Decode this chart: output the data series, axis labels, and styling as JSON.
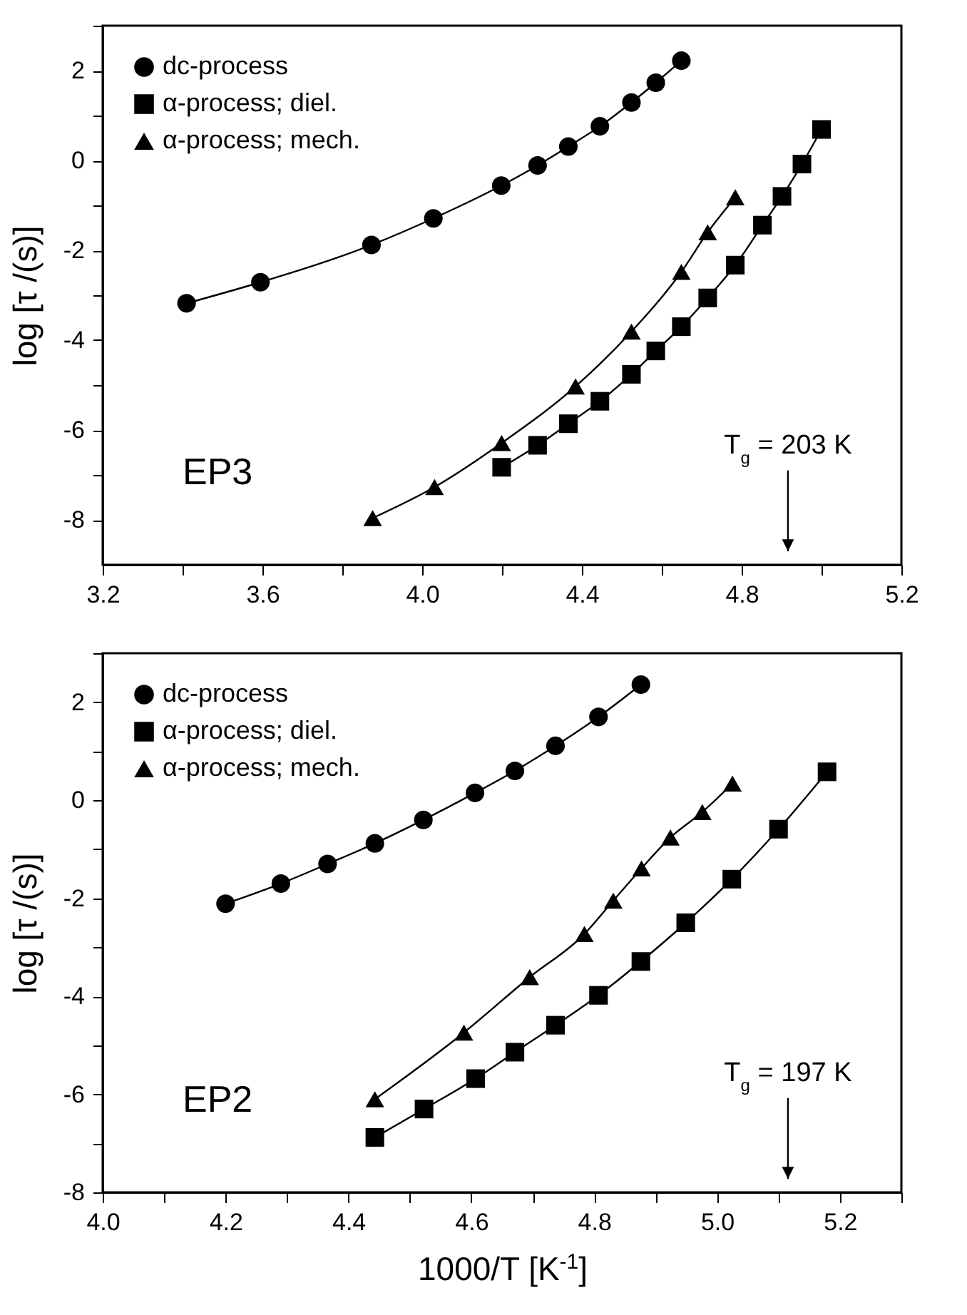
{
  "chart_data": [
    {
      "type": "line",
      "ylabel": "log [τ /(s)]",
      "xlim": [
        3.2,
        5.2
      ],
      "ylim": [
        -9,
        3
      ],
      "xticks": [
        3.2,
        {
          "value": 3.4,
          "label": null
        },
        3.6,
        {
          "value": 3.8,
          "label": null
        },
        {
          "value": 4.0,
          "label": "4.0"
        },
        {
          "value": 4.2,
          "label": null
        },
        4.4,
        {
          "value": 4.6,
          "label": null
        },
        4.8,
        {
          "value": 5.0,
          "label": null
        },
        5.2
      ],
      "yticks": [
        -8,
        {
          "value": -7,
          "label": null
        },
        -6,
        {
          "value": -5,
          "label": null
        },
        -4,
        {
          "value": -3,
          "label": null
        },
        -2,
        {
          "value": -1,
          "label": null
        },
        0,
        {
          "value": 1,
          "label": null
        },
        2,
        {
          "value": 3,
          "label": null
        }
      ],
      "grid": false,
      "legend": "top left",
      "line_style": "solid",
      "series": [
        {
          "name": "dc-process",
          "color": "#000000",
          "marker": "circle",
          "x": [
            3.41,
            3.595,
            3.873,
            4.028,
            4.198,
            4.289,
            4.366,
            4.445,
            4.524,
            4.585,
            4.649
          ],
          "values": [
            -3.18,
            -2.71,
            -1.88,
            -1.29,
            -0.56,
            -0.11,
            0.31,
            0.76,
            1.29,
            1.73,
            2.22
          ]
        },
        {
          "name": "α-process; diel.",
          "color": "#000000",
          "marker": "square",
          "x": [
            4.199,
            4.289,
            4.366,
            4.445,
            4.524,
            4.585,
            4.649,
            4.715,
            4.784,
            4.852,
            4.901,
            4.951,
            5.0
          ],
          "values": [
            -6.83,
            -6.34,
            -5.86,
            -5.36,
            -4.76,
            -4.24,
            -3.7,
            -3.06,
            -2.33,
            -1.44,
            -0.8,
            -0.08,
            0.69
          ]
        },
        {
          "name": "α-process; mech.",
          "color": "#000000",
          "marker": "triangle",
          "x": [
            3.876,
            4.031,
            4.199,
            4.384,
            4.524,
            4.649,
            4.715,
            4.784
          ],
          "values": [
            -7.96,
            -7.27,
            -6.29,
            -5.03,
            -3.81,
            -2.48,
            -1.6,
            -0.82
          ]
        }
      ],
      "annotations": [
        "EP3",
        "T$_{g}$ = 203 K"
      ]
    },
    {
      "type": "line",
      "xlabel": "1000/T [K$^{-1}$]",
      "ylabel": "log [τ /(s)]",
      "xlim": [
        4.0,
        5.3
      ],
      "ylim": [
        -8,
        3
      ],
      "xticks": [
        {
          "value": 4.0,
          "label": "4.0"
        },
        {
          "value": 4.1,
          "label": null
        },
        4.2,
        {
          "value": 4.3,
          "label": null
        },
        4.4,
        {
          "value": 4.5,
          "label": null
        },
        4.6,
        {
          "value": 4.7,
          "label": null
        },
        4.8,
        {
          "value": 4.9,
          "label": null
        },
        {
          "value": 5.0,
          "label": "5.0"
        },
        {
          "value": 5.1,
          "label": null
        },
        5.2,
        {
          "value": 5.3,
          "label": null
        }
      ],
      "yticks": [
        -8,
        {
          "value": -7,
          "label": null
        },
        -6,
        {
          "value": -5,
          "label": null
        },
        -4,
        {
          "value": -3,
          "label": null
        },
        -2,
        {
          "value": -1,
          "label": null
        },
        0,
        {
          "value": 1,
          "label": null
        },
        2,
        {
          "value": 3,
          "label": null
        }
      ],
      "grid": false,
      "legend": "top left",
      "line_style": "solid",
      "series": [
        {
          "name": "dc-process",
          "color": "#000000",
          "marker": "circle",
          "x": [
            4.2,
            4.29,
            4.366,
            4.443,
            4.522,
            4.606,
            4.671,
            4.737,
            4.807,
            4.876
          ],
          "values": [
            -2.11,
            -1.7,
            -1.3,
            -0.88,
            -0.4,
            0.15,
            0.6,
            1.11,
            1.7,
            2.36
          ]
        },
        {
          "name": "α-process; diel.",
          "color": "#000000",
          "marker": "square",
          "x": [
            4.443,
            4.523,
            4.607,
            4.671,
            4.737,
            4.807,
            4.876,
            4.949,
            5.024,
            5.1,
            5.179
          ],
          "values": [
            -6.88,
            -6.3,
            -5.68,
            -5.14,
            -4.59,
            -3.98,
            -3.29,
            -2.5,
            -1.61,
            -0.59,
            0.58
          ]
        },
        {
          "name": "α-process; mech.",
          "color": "#000000",
          "marker": "triangle",
          "x": [
            4.443,
            4.588,
            4.695,
            4.784,
            4.831,
            4.877,
            4.924,
            4.976,
            5.025
          ],
          "values": [
            -6.1,
            -4.74,
            -3.61,
            -2.73,
            -2.05,
            -1.39,
            -0.76,
            -0.24,
            0.34
          ]
        }
      ],
      "annotations": [
        "EP2",
        "T$_{g}$ = 197 K"
      ]
    }
  ]
}
